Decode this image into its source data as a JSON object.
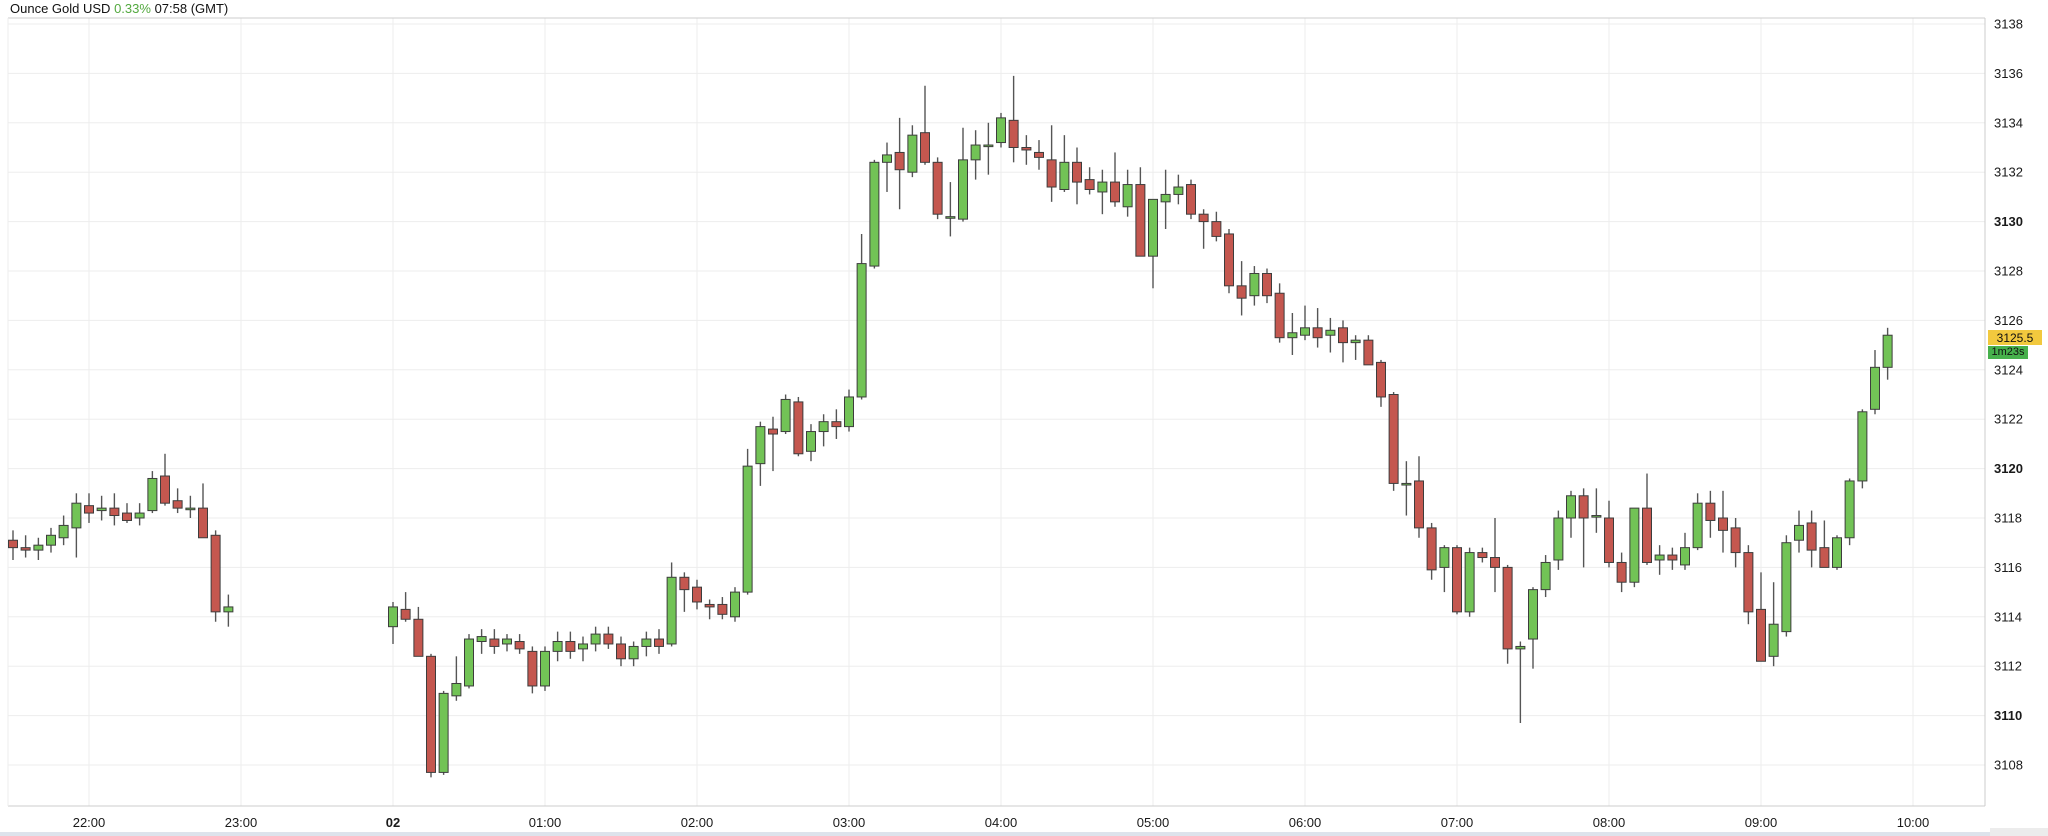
{
  "header": {
    "instrument": "Ounce Gold USD",
    "change_percent": "0.33%",
    "timestamp": "07:58 (GMT)",
    "change_color": "#53a93f"
  },
  "price_marker": {
    "price": "3125.5",
    "price_bg": "#f2c93e",
    "countdown": "1m23s",
    "countdown_bg": "#47b14c"
  },
  "chart_data": {
    "type": "candlestick",
    "title": "Ounce Gold USD 5-minute candles",
    "interval": "5m",
    "ylim": [
      3106.3,
      3138.6
    ],
    "grid": true,
    "legend_position": "none",
    "y_ticks": [
      3108,
      3110,
      3112,
      3114,
      3116,
      3118,
      3120,
      3122,
      3124,
      3126,
      3128,
      3130,
      3132,
      3134,
      3136,
      3138
    ],
    "y_bold_ticks": [
      3110,
      3120,
      3130
    ],
    "x_ticks": [
      {
        "h": -2,
        "label": "22:00",
        "bold": false
      },
      {
        "h": -1,
        "label": "23:00",
        "bold": false
      },
      {
        "h": 0,
        "label": "02",
        "bold": true
      },
      {
        "h": 1,
        "label": "01:00",
        "bold": false
      },
      {
        "h": 2,
        "label": "02:00",
        "bold": false
      },
      {
        "h": 3,
        "label": "03:00",
        "bold": false
      },
      {
        "h": 4,
        "label": "04:00",
        "bold": false
      },
      {
        "h": 5,
        "label": "05:00",
        "bold": false
      },
      {
        "h": 6,
        "label": "06:00",
        "bold": false
      },
      {
        "h": 7,
        "label": "07:00",
        "bold": false
      },
      {
        "h": 8,
        "label": "08:00",
        "bold": false
      },
      {
        "h": 9,
        "label": "09:00",
        "bold": false
      },
      {
        "h": 10,
        "label": "10:00",
        "bold": false
      }
    ],
    "colors": {
      "up": "#72c356",
      "down": "#c4574f",
      "body_border": "#3d3d3d",
      "wick": "#555555",
      "grid": "#ededed",
      "spine": "#cccccc",
      "label": "#1a1a1a"
    },
    "candles": [
      [
        -2.5,
        3117.1,
        3117.5,
        3116.3,
        3116.8
      ],
      [
        -2.417,
        3116.8,
        3117.3,
        3116.4,
        3116.7
      ],
      [
        -2.333,
        3116.7,
        3117.2,
        3116.3,
        3116.9
      ],
      [
        -2.25,
        3116.9,
        3117.6,
        3116.6,
        3117.3
      ],
      [
        -2.167,
        3117.2,
        3118.1,
        3116.9,
        3117.7
      ],
      [
        -2.083,
        3117.6,
        3119.0,
        3116.4,
        3118.6
      ],
      [
        -2.0,
        3118.5,
        3119.0,
        3117.8,
        3118.2
      ],
      [
        -1.917,
        3118.3,
        3118.9,
        3117.9,
        3118.4
      ],
      [
        -1.833,
        3118.4,
        3119.0,
        3117.7,
        3118.1
      ],
      [
        -1.75,
        3118.2,
        3118.6,
        3117.8,
        3117.9
      ],
      [
        -1.667,
        3118.0,
        3118.6,
        3117.7,
        3118.2
      ],
      [
        -1.583,
        3118.3,
        3119.9,
        3118.2,
        3119.6
      ],
      [
        -1.5,
        3119.7,
        3120.6,
        3118.5,
        3118.6
      ],
      [
        -1.417,
        3118.7,
        3119.2,
        3118.2,
        3118.4
      ],
      [
        -1.333,
        3118.4,
        3118.9,
        3118.0,
        3118.4
      ],
      [
        -1.25,
        3118.4,
        3119.4,
        3117.2,
        3117.2
      ],
      [
        -1.167,
        3117.3,
        3117.5,
        3113.8,
        3114.2
      ],
      [
        -1.083,
        3114.2,
        3114.9,
        3113.6,
        3114.4
      ],
      [
        0.0,
        3113.6,
        3114.6,
        3112.9,
        3114.4
      ],
      [
        0.083,
        3114.3,
        3115.0,
        3113.8,
        3113.9
      ],
      [
        0.167,
        3113.9,
        3114.4,
        3112.4,
        3112.4
      ],
      [
        0.25,
        3112.4,
        3112.5,
        3107.5,
        3107.7
      ],
      [
        0.333,
        3107.7,
        3111.0,
        3107.6,
        3110.9
      ],
      [
        0.417,
        3110.8,
        3112.4,
        3110.6,
        3111.3
      ],
      [
        0.5,
        3111.2,
        3113.3,
        3111.1,
        3113.1
      ],
      [
        0.583,
        3113.0,
        3113.5,
        3112.5,
        3113.2
      ],
      [
        0.667,
        3113.1,
        3113.5,
        3112.5,
        3112.8
      ],
      [
        0.75,
        3112.9,
        3113.3,
        3112.6,
        3113.1
      ],
      [
        0.833,
        3113.0,
        3113.3,
        3112.5,
        3112.7
      ],
      [
        0.917,
        3112.6,
        3112.8,
        3110.9,
        3111.2
      ],
      [
        1.0,
        3111.2,
        3112.8,
        3111.0,
        3112.6
      ],
      [
        1.083,
        3112.6,
        3113.4,
        3112.2,
        3113.0
      ],
      [
        1.167,
        3113.0,
        3113.4,
        3112.3,
        3112.6
      ],
      [
        1.25,
        3112.7,
        3113.2,
        3112.2,
        3112.9
      ],
      [
        1.333,
        3112.9,
        3113.6,
        3112.6,
        3113.3
      ],
      [
        1.417,
        3113.3,
        3113.6,
        3112.7,
        3112.9
      ],
      [
        1.5,
        3112.9,
        3113.2,
        3112.0,
        3112.3
      ],
      [
        1.583,
        3112.3,
        3113.0,
        3112.0,
        3112.8
      ],
      [
        1.667,
        3112.8,
        3113.4,
        3112.4,
        3113.1
      ],
      [
        1.75,
        3113.1,
        3113.5,
        3112.5,
        3112.8
      ],
      [
        1.833,
        3112.9,
        3116.2,
        3112.8,
        3115.6
      ],
      [
        1.917,
        3115.6,
        3115.8,
        3114.2,
        3115.1
      ],
      [
        2.0,
        3115.2,
        3115.5,
        3114.3,
        3114.6
      ],
      [
        2.083,
        3114.5,
        3114.7,
        3113.9,
        3114.4
      ],
      [
        2.167,
        3114.5,
        3114.8,
        3113.9,
        3114.1
      ],
      [
        2.25,
        3114.0,
        3115.2,
        3113.8,
        3115.0
      ],
      [
        2.333,
        3115.0,
        3120.8,
        3114.9,
        3120.1
      ],
      [
        2.417,
        3120.2,
        3121.9,
        3119.3,
        3121.7
      ],
      [
        2.5,
        3121.6,
        3122.1,
        3119.9,
        3121.4
      ],
      [
        2.583,
        3121.5,
        3123.0,
        3121.4,
        3122.8
      ],
      [
        2.667,
        3122.7,
        3122.9,
        3120.5,
        3120.6
      ],
      [
        2.75,
        3120.7,
        3121.8,
        3120.3,
        3121.5
      ],
      [
        2.833,
        3121.5,
        3122.2,
        3120.9,
        3121.9
      ],
      [
        2.917,
        3121.9,
        3122.4,
        3121.2,
        3121.7
      ],
      [
        3.0,
        3121.7,
        3123.2,
        3121.5,
        3122.9
      ],
      [
        3.083,
        3122.9,
        3129.5,
        3122.8,
        3128.3
      ],
      [
        3.167,
        3128.2,
        3132.5,
        3128.1,
        3132.4
      ],
      [
        3.25,
        3132.4,
        3133.2,
        3131.2,
        3132.7
      ],
      [
        3.333,
        3132.8,
        3134.2,
        3130.5,
        3132.1
      ],
      [
        3.417,
        3132.0,
        3133.9,
        3131.8,
        3133.5
      ],
      [
        3.5,
        3133.6,
        3135.5,
        3132.3,
        3132.4
      ],
      [
        3.583,
        3132.4,
        3132.6,
        3130.1,
        3130.3
      ],
      [
        3.667,
        3130.2,
        3131.6,
        3129.4,
        3130.2
      ],
      [
        3.75,
        3130.1,
        3133.8,
        3130.0,
        3132.5
      ],
      [
        3.833,
        3132.5,
        3133.7,
        3131.7,
        3133.1
      ],
      [
        3.917,
        3133.1,
        3134.0,
        3131.9,
        3133.1
      ],
      [
        4.0,
        3133.2,
        3134.4,
        3133.0,
        3134.2
      ],
      [
        4.083,
        3134.1,
        3135.9,
        3132.4,
        3133.0
      ],
      [
        4.167,
        3133.0,
        3133.5,
        3132.3,
        3132.9
      ],
      [
        4.25,
        3132.8,
        3133.3,
        3132.1,
        3132.6
      ],
      [
        4.333,
        3132.5,
        3133.9,
        3130.8,
        3131.4
      ],
      [
        4.417,
        3131.3,
        3133.5,
        3131.2,
        3132.4
      ],
      [
        4.5,
        3132.4,
        3133.0,
        3130.7,
        3131.6
      ],
      [
        4.583,
        3131.7,
        3132.2,
        3131.1,
        3131.3
      ],
      [
        4.667,
        3131.2,
        3132.1,
        3130.3,
        3131.6
      ],
      [
        4.75,
        3131.6,
        3132.8,
        3130.6,
        3130.8
      ],
      [
        4.833,
        3130.6,
        3132.1,
        3130.2,
        3131.5
      ],
      [
        4.917,
        3131.5,
        3132.2,
        3128.6,
        3128.6
      ],
      [
        5.0,
        3128.6,
        3130.9,
        3127.3,
        3130.9
      ],
      [
        5.083,
        3130.8,
        3132.1,
        3129.7,
        3131.1
      ],
      [
        5.167,
        3131.1,
        3131.9,
        3130.7,
        3131.4
      ],
      [
        5.25,
        3131.5,
        3131.7,
        3130.1,
        3130.3
      ],
      [
        5.333,
        3130.3,
        3130.5,
        3128.9,
        3130.0
      ],
      [
        5.417,
        3130.0,
        3130.4,
        3129.2,
        3129.4
      ],
      [
        5.5,
        3129.5,
        3129.7,
        3127.1,
        3127.4
      ],
      [
        5.583,
        3127.4,
        3128.4,
        3126.2,
        3126.9
      ],
      [
        5.667,
        3127.0,
        3128.2,
        3126.6,
        3127.9
      ],
      [
        5.75,
        3127.9,
        3128.1,
        3126.7,
        3127.0
      ],
      [
        5.833,
        3127.1,
        3127.5,
        3125.1,
        3125.3
      ],
      [
        5.917,
        3125.3,
        3126.3,
        3124.6,
        3125.5
      ],
      [
        6.0,
        3125.4,
        3126.6,
        3125.2,
        3125.7
      ],
      [
        6.083,
        3125.7,
        3126.5,
        3124.9,
        3125.3
      ],
      [
        6.167,
        3125.4,
        3126.1,
        3124.7,
        3125.6
      ],
      [
        6.25,
        3125.7,
        3126.0,
        3124.3,
        3125.1
      ],
      [
        6.333,
        3125.1,
        3125.4,
        3124.4,
        3125.2
      ],
      [
        6.417,
        3125.2,
        3125.4,
        3124.2,
        3124.2
      ],
      [
        6.5,
        3124.3,
        3124.4,
        3122.5,
        3122.9
      ],
      [
        6.583,
        3123.0,
        3123.1,
        3119.1,
        3119.4
      ],
      [
        6.667,
        3119.4,
        3120.3,
        3118.1,
        3119.4
      ],
      [
        6.75,
        3119.5,
        3120.5,
        3117.2,
        3117.6
      ],
      [
        6.833,
        3117.6,
        3117.8,
        3115.5,
        3115.9
      ],
      [
        6.917,
        3116.0,
        3116.9,
        3115.0,
        3116.8
      ],
      [
        7.0,
        3116.8,
        3116.9,
        3114.1,
        3114.2
      ],
      [
        7.083,
        3114.2,
        3116.8,
        3114.0,
        3116.6
      ],
      [
        7.167,
        3116.6,
        3116.8,
        3116.2,
        3116.4
      ],
      [
        7.25,
        3116.4,
        3118.0,
        3115.0,
        3116.0
      ],
      [
        7.333,
        3116.0,
        3116.1,
        3112.1,
        3112.7
      ],
      [
        7.417,
        3112.7,
        3113.0,
        3109.7,
        3112.8
      ],
      [
        7.5,
        3113.1,
        3115.2,
        3111.9,
        3115.1
      ],
      [
        7.583,
        3115.1,
        3116.5,
        3114.8,
        3116.2
      ],
      [
        7.667,
        3116.3,
        3118.3,
        3115.9,
        3118.0
      ],
      [
        7.75,
        3118.0,
        3119.1,
        3117.2,
        3118.9
      ],
      [
        7.833,
        3118.9,
        3119.2,
        3116.0,
        3118.0
      ],
      [
        7.917,
        3118.1,
        3119.2,
        3117.4,
        3118.1
      ],
      [
        8.0,
        3118.0,
        3118.7,
        3116.0,
        3116.2
      ],
      [
        8.083,
        3116.2,
        3116.6,
        3115.0,
        3115.4
      ],
      [
        8.167,
        3115.4,
        3118.4,
        3115.2,
        3118.4
      ],
      [
        8.25,
        3118.4,
        3119.8,
        3116.1,
        3116.2
      ],
      [
        8.333,
        3116.3,
        3116.9,
        3115.7,
        3116.5
      ],
      [
        8.417,
        3116.5,
        3116.8,
        3115.9,
        3116.3
      ],
      [
        8.5,
        3116.1,
        3117.4,
        3115.9,
        3116.8
      ],
      [
        8.583,
        3116.8,
        3119.0,
        3116.7,
        3118.6
      ],
      [
        8.667,
        3118.6,
        3119.1,
        3117.2,
        3117.9
      ],
      [
        8.75,
        3118.0,
        3119.1,
        3116.6,
        3117.5
      ],
      [
        8.833,
        3117.6,
        3118.0,
        3116.0,
        3116.6
      ],
      [
        8.917,
        3116.6,
        3116.9,
        3113.7,
        3114.2
      ],
      [
        9.0,
        3114.3,
        3115.8,
        3112.2,
        3112.2
      ],
      [
        9.083,
        3112.4,
        3115.4,
        3112.0,
        3113.7
      ],
      [
        9.167,
        3113.4,
        3117.3,
        3113.2,
        3117.0
      ],
      [
        9.25,
        3117.1,
        3118.3,
        3116.6,
        3117.7
      ],
      [
        9.333,
        3117.8,
        3118.3,
        3116.0,
        3116.7
      ],
      [
        9.417,
        3116.8,
        3117.9,
        3116.0,
        3116.0
      ],
      [
        9.5,
        3116.0,
        3117.3,
        3115.9,
        3117.2
      ],
      [
        9.583,
        3117.2,
        3119.6,
        3116.9,
        3119.5
      ],
      [
        9.667,
        3119.5,
        3122.4,
        3119.2,
        3122.3
      ],
      [
        9.75,
        3122.4,
        3124.8,
        3122.2,
        3124.1
      ],
      [
        9.833,
        3124.1,
        3125.7,
        3123.6,
        3125.4
      ]
    ]
  }
}
